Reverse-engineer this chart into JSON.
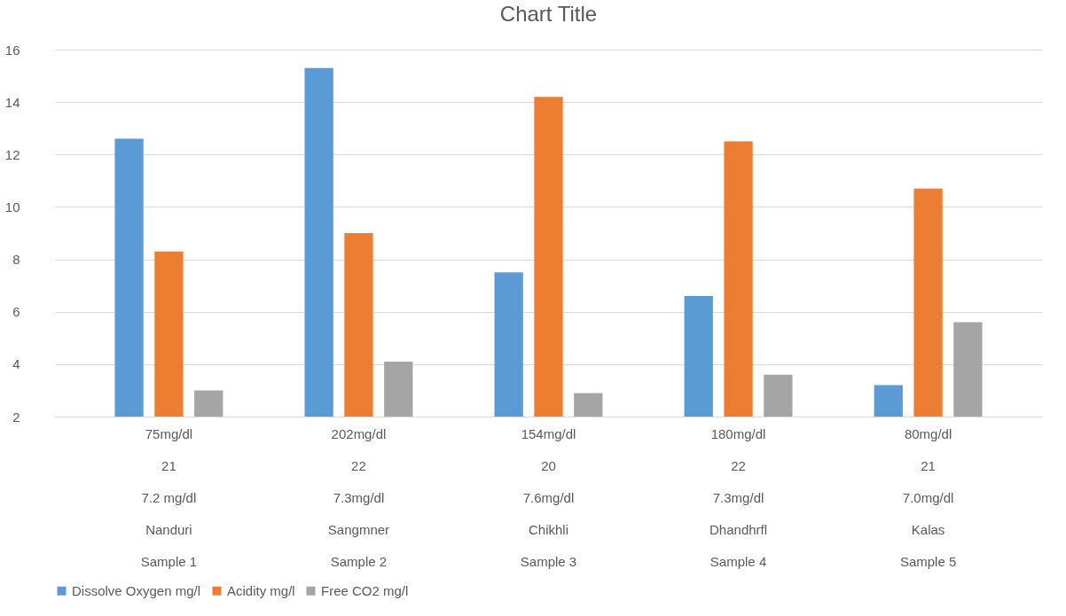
{
  "chart_data": {
    "type": "bar",
    "title": "Chart Title",
    "categories": [
      "75mg/dl\n21\n7.2 mg/dl\nNanduri\nSample 1",
      "202mg/dl\n22\n7.3mg/dl\nSangmner\nSample 2",
      "154mg/dl\n20\n7.6mg/dl\nChikhli\nSample 3",
      "180mg/dl\n22\n7.3mg/dl\nDhandhrfl\nSample  4",
      "80mg/dl\n21\n7.0mg/dl\nKalas\nSample  5"
    ],
    "series": [
      {
        "name": "Dissolve Oxygen mg/l",
        "color": "#5b9bd5",
        "values": [
          12.6,
          15.3,
          7.5,
          6.6,
          3.2
        ]
      },
      {
        "name": "Acidity mg/l",
        "color": "#ed7d31",
        "values": [
          8.3,
          9.0,
          14.2,
          12.5,
          10.7
        ]
      },
      {
        "name": "Free CO2 mg/l",
        "color": "#a5a5a5",
        "values": [
          3.0,
          4.1,
          2.9,
          3.6,
          5.6
        ]
      }
    ],
    "ylim": [
      2,
      16
    ],
    "yticks": [
      2,
      4,
      6,
      8,
      10,
      12,
      14,
      16
    ],
    "grid": "y",
    "legend": "bottom"
  }
}
